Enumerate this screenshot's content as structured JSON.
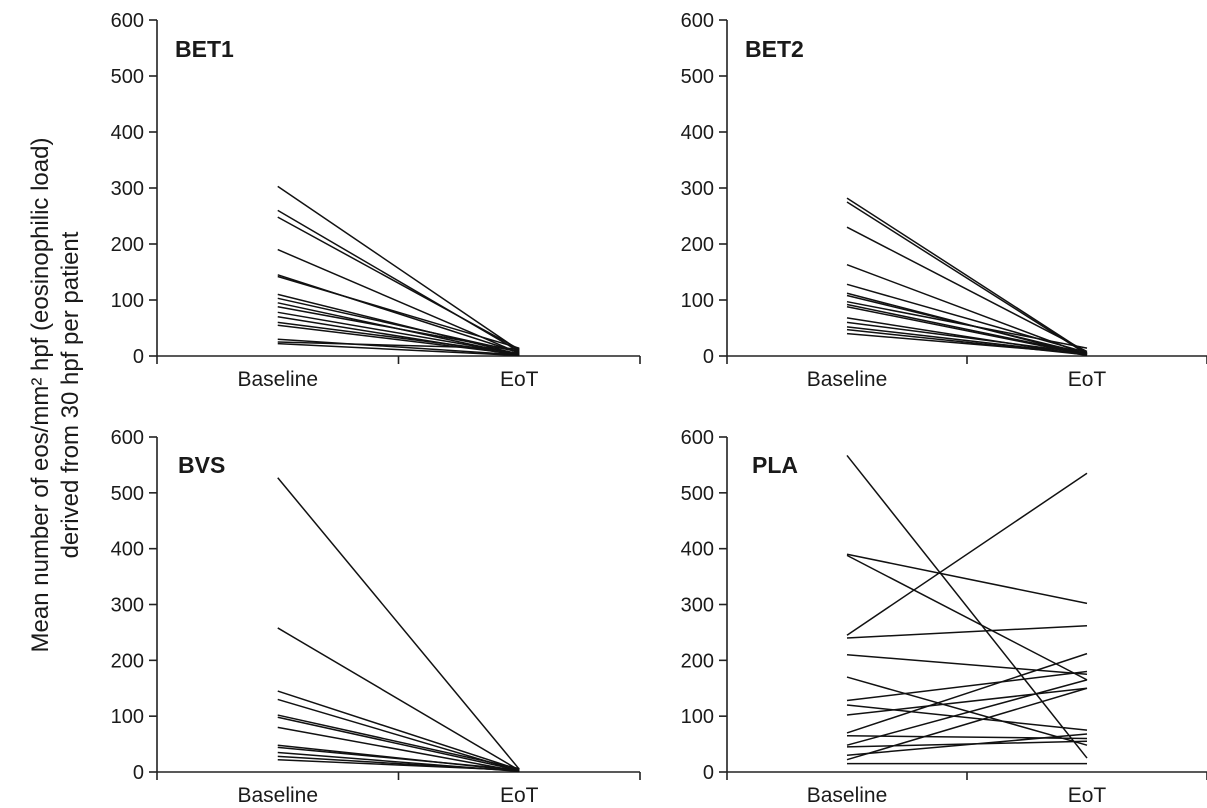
{
  "y_axis_title_line1": "Mean number of eos/mm² hpf (eosinophilic load)",
  "y_axis_title_line2": "derived from 30 hpf per patient",
  "chart_data": [
    {
      "type": "line",
      "title": "BET1",
      "categories": [
        "Baseline",
        "EoT"
      ],
      "ylim": [
        0,
        600
      ],
      "yticks": [
        0,
        100,
        200,
        300,
        400,
        500,
        600
      ],
      "series": [
        {
          "values": [
            303,
            10
          ]
        },
        {
          "values": [
            260,
            8
          ]
        },
        {
          "values": [
            248,
            12
          ]
        },
        {
          "values": [
            190,
            5
          ]
        },
        {
          "values": [
            145,
            6
          ]
        },
        {
          "values": [
            142,
            14
          ]
        },
        {
          "values": [
            110,
            3
          ]
        },
        {
          "values": [
            103,
            7
          ]
        },
        {
          "values": [
            95,
            2
          ]
        },
        {
          "values": [
            88,
            9
          ]
        },
        {
          "values": [
            78,
            4
          ]
        },
        {
          "values": [
            70,
            1
          ]
        },
        {
          "values": [
            60,
            5
          ]
        },
        {
          "values": [
            55,
            3
          ]
        },
        {
          "values": [
            30,
            2
          ]
        },
        {
          "values": [
            25,
            13
          ]
        },
        {
          "values": [
            22,
            1
          ]
        }
      ]
    },
    {
      "type": "line",
      "title": "BET2",
      "categories": [
        "Baseline",
        "EoT"
      ],
      "ylim": [
        0,
        600
      ],
      "yticks": [
        0,
        100,
        200,
        300,
        400,
        500,
        600
      ],
      "series": [
        {
          "values": [
            282,
            5
          ]
        },
        {
          "values": [
            275,
            3
          ]
        },
        {
          "values": [
            230,
            8
          ]
        },
        {
          "values": [
            163,
            2
          ]
        },
        {
          "values": [
            128,
            6
          ]
        },
        {
          "values": [
            112,
            1
          ]
        },
        {
          "values": [
            108,
            4
          ]
        },
        {
          "values": [
            97,
            14
          ]
        },
        {
          "values": [
            92,
            3
          ]
        },
        {
          "values": [
            88,
            2
          ]
        },
        {
          "values": [
            68,
            1
          ]
        },
        {
          "values": [
            60,
            5
          ]
        },
        {
          "values": [
            52,
            3
          ]
        },
        {
          "values": [
            47,
            2
          ]
        },
        {
          "values": [
            40,
            4
          ]
        }
      ]
    },
    {
      "type": "line",
      "title": "BVS",
      "categories": [
        "Baseline",
        "EoT"
      ],
      "ylim": [
        0,
        600
      ],
      "yticks": [
        0,
        100,
        200,
        300,
        400,
        500,
        600
      ],
      "series": [
        {
          "values": [
            527,
            5
          ]
        },
        {
          "values": [
            258,
            3
          ]
        },
        {
          "values": [
            145,
            4
          ]
        },
        {
          "values": [
            130,
            2
          ]
        },
        {
          "values": [
            102,
            6
          ]
        },
        {
          "values": [
            98,
            3
          ]
        },
        {
          "values": [
            80,
            1
          ]
        },
        {
          "values": [
            48,
            2
          ]
        },
        {
          "values": [
            44,
            4
          ]
        },
        {
          "values": [
            35,
            1
          ]
        },
        {
          "values": [
            28,
            2
          ]
        },
        {
          "values": [
            22,
            3
          ]
        }
      ]
    },
    {
      "type": "line",
      "title": "PLA",
      "categories": [
        "Baseline",
        "EoT"
      ],
      "ylim": [
        0,
        600
      ],
      "yticks": [
        0,
        100,
        200,
        300,
        400,
        500,
        600
      ],
      "series": [
        {
          "values": [
            567,
            25
          ]
        },
        {
          "values": [
            390,
            302
          ]
        },
        {
          "values": [
            388,
            165
          ]
        },
        {
          "values": [
            245,
            535
          ]
        },
        {
          "values": [
            240,
            262
          ]
        },
        {
          "values": [
            210,
            175
          ]
        },
        {
          "values": [
            170,
            48
          ]
        },
        {
          "values": [
            128,
            180
          ]
        },
        {
          "values": [
            120,
            75
          ]
        },
        {
          "values": [
            102,
            150
          ]
        },
        {
          "values": [
            70,
            212
          ]
        },
        {
          "values": [
            65,
            60
          ]
        },
        {
          "values": [
            48,
            165
          ]
        },
        {
          "values": [
            45,
            55
          ]
        },
        {
          "values": [
            30,
            68
          ]
        },
        {
          "values": [
            22,
            150
          ]
        },
        {
          "values": [
            15,
            15
          ]
        }
      ]
    }
  ]
}
